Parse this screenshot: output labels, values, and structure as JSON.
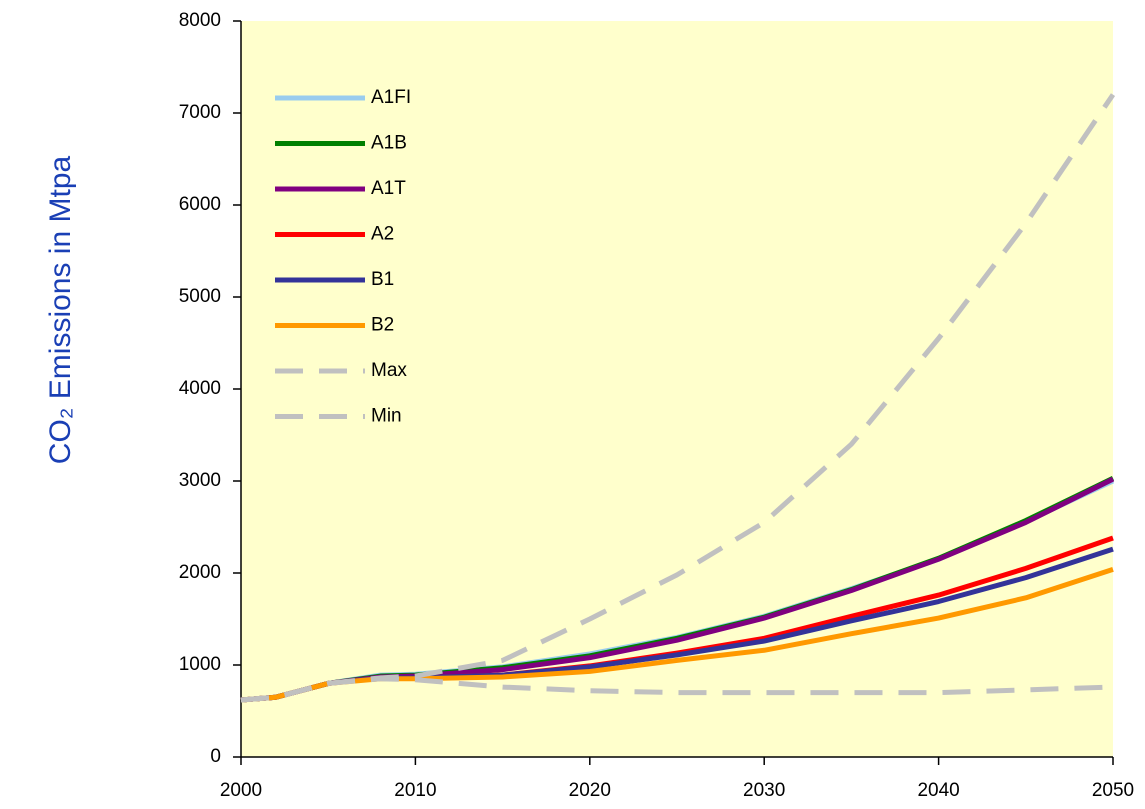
{
  "chart_data": {
    "type": "line",
    "y_label": "CO₂ Emissions in Mtpa",
    "x": [
      2000,
      2002,
      2005,
      2008,
      2010,
      2015,
      2020,
      2025,
      2030,
      2035,
      2040,
      2045,
      2050
    ],
    "series": [
      {
        "name": "A1FI",
        "color": "#99ccee",
        "values": [
          620,
          650,
          800,
          890,
          900,
          980,
          1120,
          1300,
          1530,
          1830,
          2150,
          2560,
          3000
        ]
      },
      {
        "name": "A1B",
        "color": "#008000",
        "values": [
          620,
          650,
          800,
          880,
          890,
          970,
          1100,
          1290,
          1520,
          1820,
          2160,
          2570,
          3030
        ]
      },
      {
        "name": "A1T",
        "color": "#800080",
        "values": [
          620,
          650,
          800,
          870,
          880,
          950,
          1080,
          1270,
          1510,
          1810,
          2150,
          2550,
          3020
        ]
      },
      {
        "name": "A2",
        "color": "#ff0000",
        "values": [
          620,
          650,
          800,
          860,
          860,
          890,
          990,
          1130,
          1290,
          1530,
          1760,
          2050,
          2380
        ]
      },
      {
        "name": "B1",
        "color": "#333399",
        "values": [
          620,
          650,
          800,
          860,
          860,
          890,
          980,
          1110,
          1260,
          1480,
          1690,
          1950,
          2260
        ]
      },
      {
        "name": "B2",
        "color": "#ff9900",
        "values": [
          620,
          650,
          800,
          850,
          850,
          870,
          930,
          1050,
          1160,
          1340,
          1510,
          1730,
          2040
        ]
      },
      {
        "name": "Max",
        "color": "#c0c0c0",
        "dashed": true,
        "values": [
          620,
          650,
          800,
          860,
          880,
          1050,
          1500,
          1980,
          2550,
          3400,
          4550,
          5800,
          7200
        ]
      },
      {
        "name": "Min",
        "color": "#c0c0c0",
        "dashed": true,
        "values": [
          620,
          650,
          800,
          850,
          840,
          760,
          720,
          700,
          700,
          700,
          700,
          730,
          760
        ]
      }
    ],
    "xlim": [
      2000,
      2050
    ],
    "xticks": [
      2000,
      2010,
      2020,
      2030,
      2040,
      2050
    ],
    "ylim": [
      0,
      8000
    ],
    "yticks": [
      0,
      1000,
      2000,
      3000,
      4000,
      5000,
      6000,
      7000,
      8000
    ],
    "legend": "upper left"
  }
}
